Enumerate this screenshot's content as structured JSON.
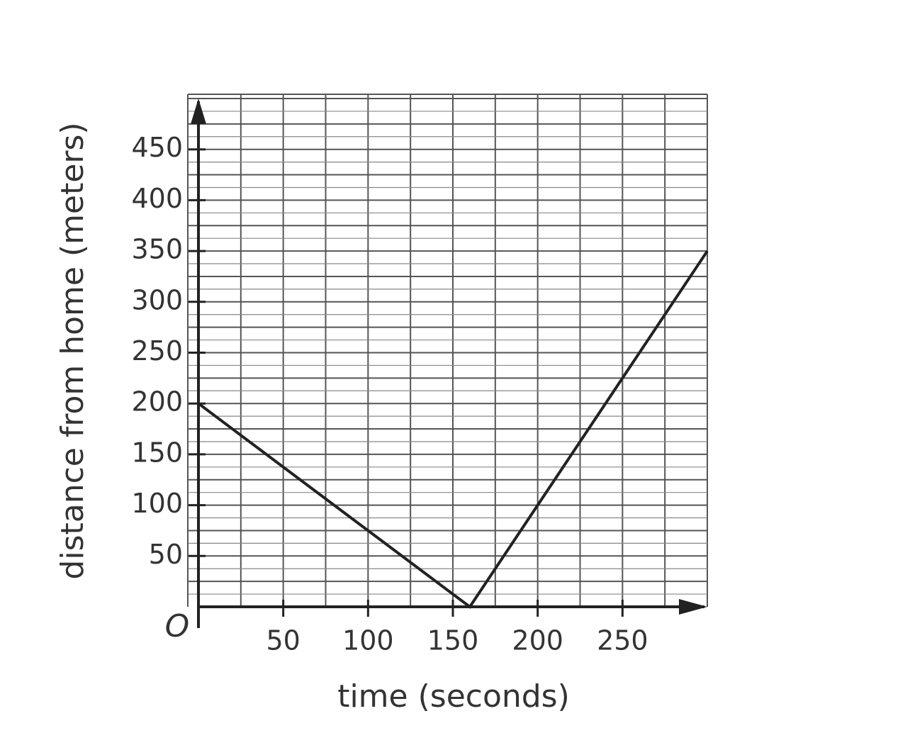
{
  "chart_data": {
    "type": "line",
    "x_label": "time (seconds)",
    "y_label": "distance from home (meters)",
    "origin_label": "O",
    "x": [
      0,
      160,
      300
    ],
    "values": [
      200,
      0,
      350
    ],
    "color": "#222222",
    "xlim": [
      0,
      300
    ],
    "ylim": [
      0,
      500
    ],
    "xticks": [
      50,
      100,
      150,
      200,
      250
    ],
    "yticks": [
      50,
      100,
      150,
      200,
      250,
      300,
      350,
      400,
      450
    ],
    "grid": true,
    "xgrid": [
      25,
      50,
      75,
      100,
      125,
      150,
      175,
      200,
      225,
      250,
      275,
      300
    ],
    "ygrid": [
      12.5,
      25,
      37.5,
      50,
      62.5,
      75,
      87.5,
      100,
      112.5,
      125,
      137.5,
      150,
      162.5,
      175,
      187.5,
      200,
      212.5,
      225,
      237.5,
      250,
      262.5,
      275,
      287.5,
      300,
      312.5,
      325,
      337.5,
      350,
      362.5,
      375,
      387.5,
      400,
      412.5,
      425,
      437.5,
      450,
      462.5,
      475,
      487.5,
      500
    ]
  }
}
